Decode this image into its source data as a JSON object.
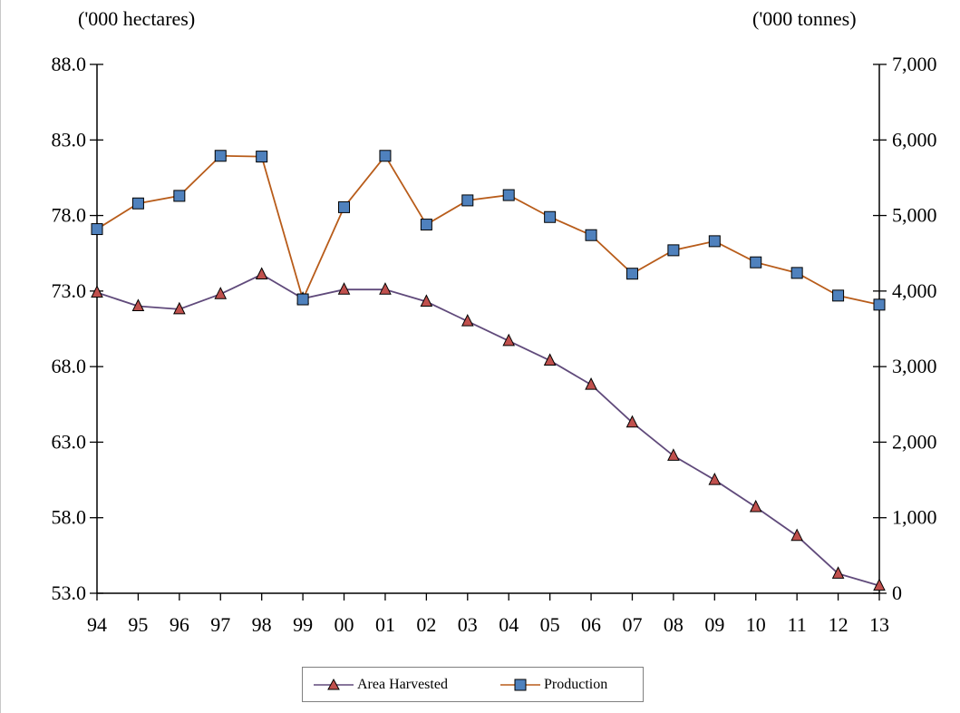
{
  "chart_data": {
    "type": "line",
    "left_axis_unit": "('000 hectares)",
    "right_axis_unit": "('000 tonnes)",
    "categories": [
      "94",
      "95",
      "96",
      "97",
      "98",
      "99",
      "00",
      "01",
      "02",
      "03",
      "04",
      "05",
      "06",
      "07",
      "08",
      "09",
      "10",
      "11",
      "12",
      "13"
    ],
    "left_axis": {
      "min": 53.0,
      "max": 88.0,
      "step": 5.0,
      "ticks": [
        "53.0",
        "58.0",
        "63.0",
        "68.0",
        "73.0",
        "78.0",
        "83.0",
        "88.0"
      ]
    },
    "right_axis": {
      "min": 0,
      "max": 7000,
      "step": 1000,
      "ticks": [
        "0",
        "1,000",
        "2,000",
        "3,000",
        "4,000",
        "5,000",
        "6,000",
        "7,000"
      ]
    },
    "series": [
      {
        "name": "Area Harvested",
        "axis": "left",
        "color": "#604a7b",
        "marker": "triangle",
        "marker_color": "#c0504d",
        "values": [
          72.9,
          72.0,
          71.8,
          72.8,
          74.1,
          72.5,
          73.1,
          73.1,
          72.3,
          71.0,
          69.7,
          68.4,
          66.8,
          64.3,
          62.1,
          60.5,
          58.7,
          56.8,
          54.3,
          53.5
        ]
      },
      {
        "name": "Production",
        "axis": "right",
        "color": "#b85c1a",
        "marker": "square",
        "marker_color": "#4f81bd",
        "values": [
          4820,
          5160,
          5260,
          5790,
          5780,
          3890,
          5110,
          5790,
          4880,
          5200,
          5270,
          4980,
          4740,
          4230,
          4540,
          4660,
          4380,
          4240,
          3940,
          3820
        ]
      }
    ],
    "legend_position": "bottom",
    "grid": false
  }
}
